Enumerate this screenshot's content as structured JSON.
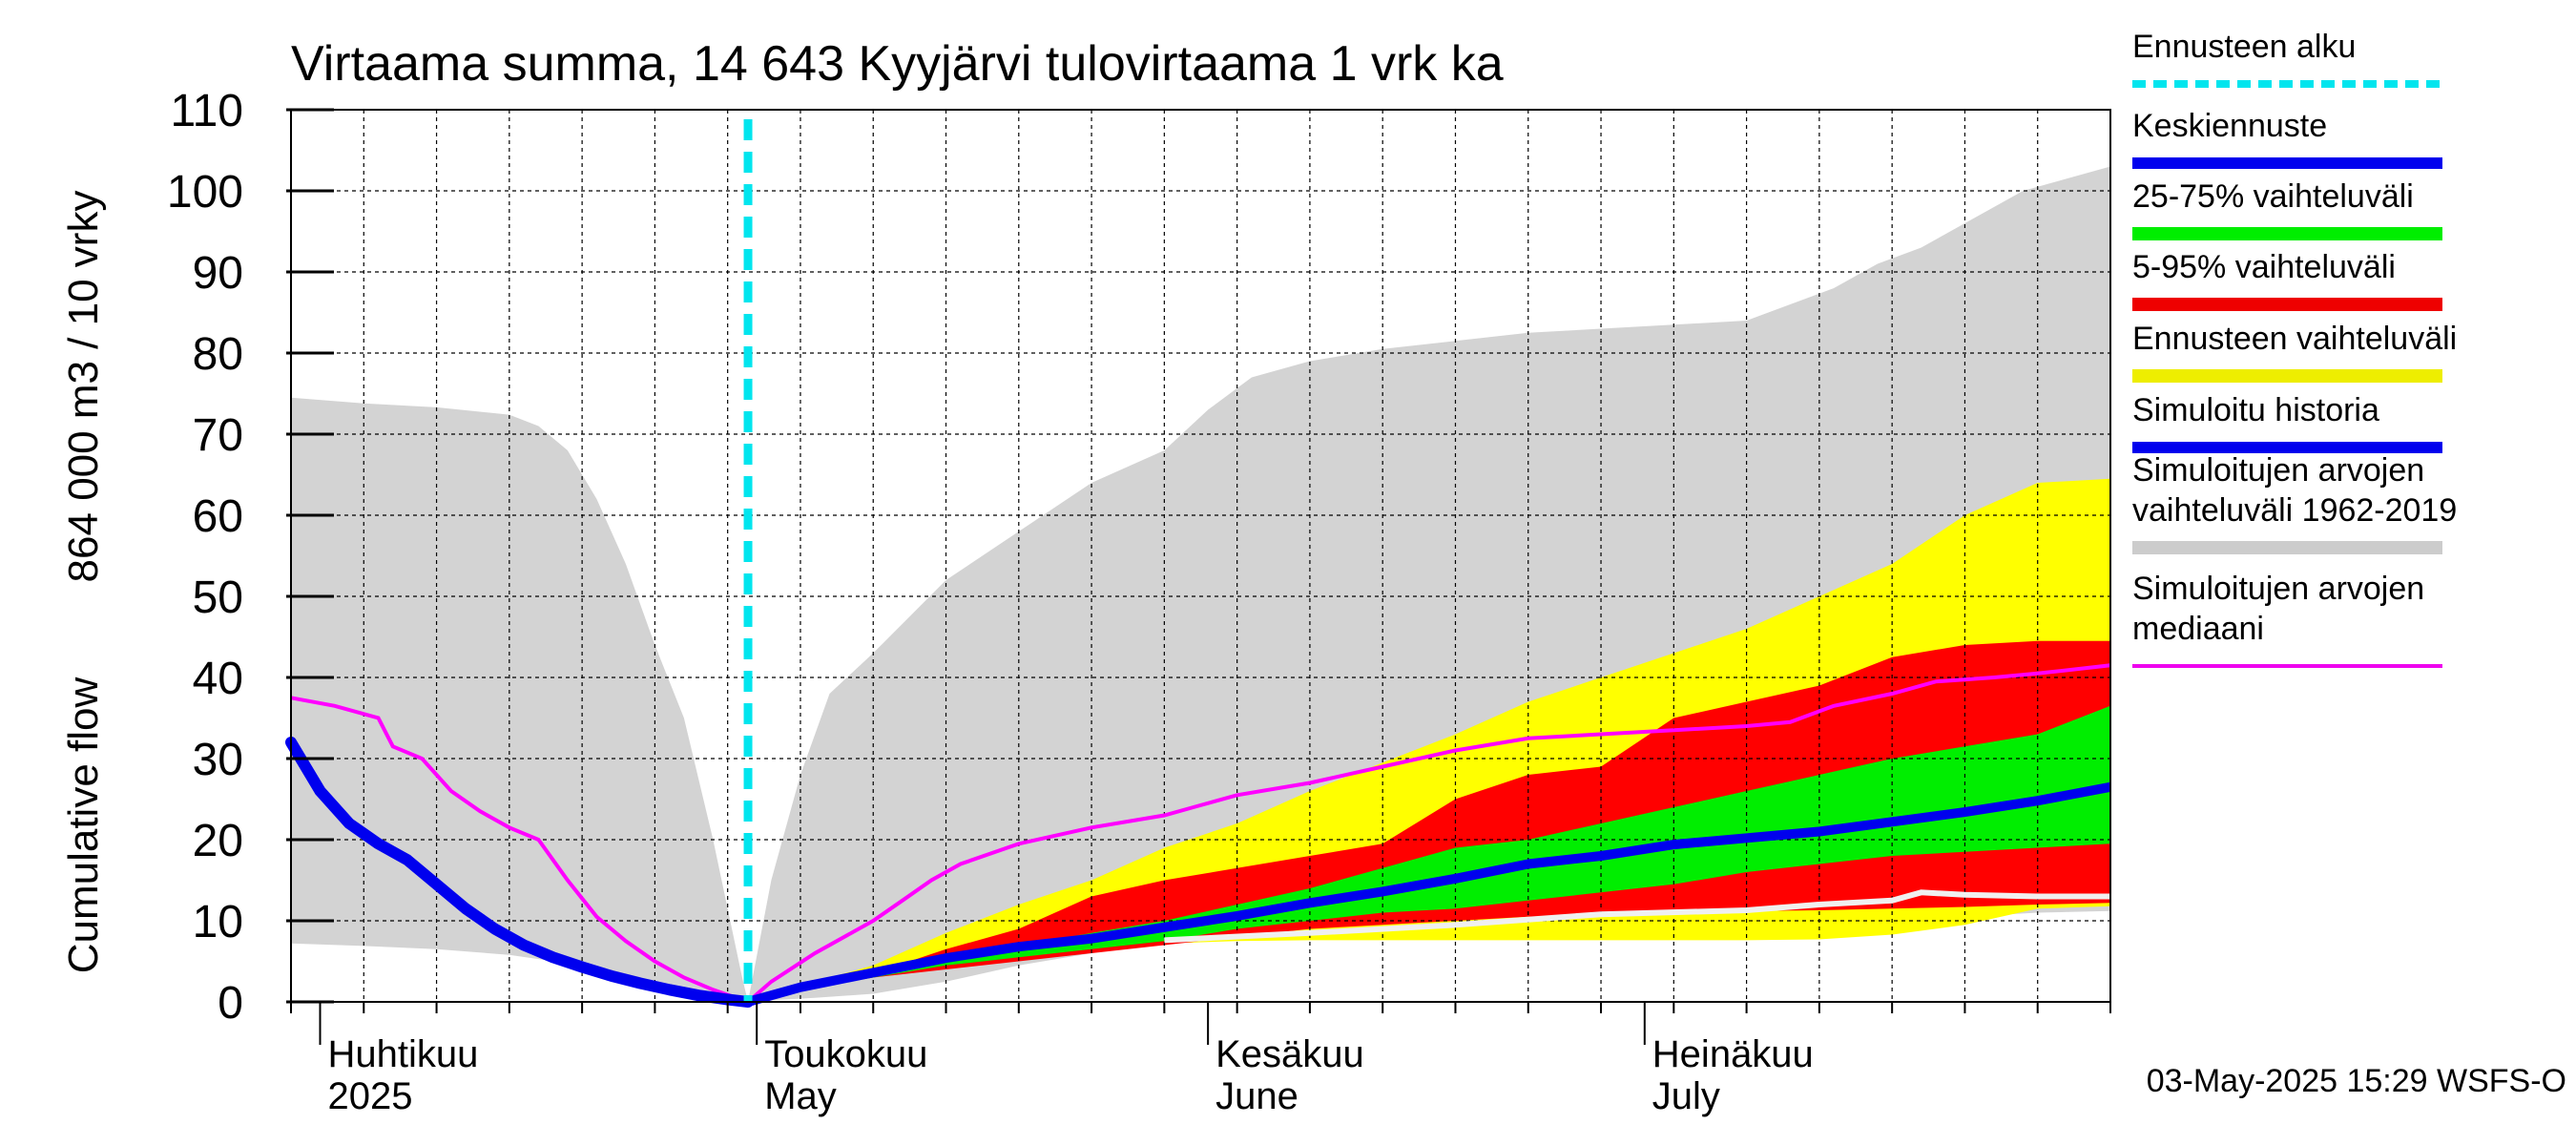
{
  "chart_data": {
    "type": "area",
    "title": "Virtaama summa, 14 643 Kyyjärvi tulovirtaama 1 vrk ka",
    "ylabel_lines": [
      "Cumulative flow",
      "864 000 m3 / 10 vrky"
    ],
    "ylim": [
      0,
      110
    ],
    "yticks": [
      0,
      10,
      20,
      30,
      40,
      50,
      60,
      70,
      80,
      90,
      100,
      110
    ],
    "x_range_days": [
      0,
      125
    ],
    "x_start_date": "2025-03-30",
    "month_labels": [
      {
        "day": 2,
        "line1": "Huhtikuu",
        "line2": "2025"
      },
      {
        "day": 32,
        "line1": "Toukokuu",
        "line2": "May"
      },
      {
        "day": 63,
        "line1": "Kesäkuu",
        "line2": "June"
      },
      {
        "day": 93,
        "line1": "Heinäkuu",
        "line2": "July"
      }
    ],
    "forecast_start_day": 31.4,
    "timestamp": "03-May-2025 15:29 WSFS-O",
    "legend": [
      {
        "label": "Ennusteen alku",
        "color": "#00e5ee",
        "style": "dashed"
      },
      {
        "label": "Keskiennuste",
        "color": "#0000ee",
        "style": "solid"
      },
      {
        "label": "25-75% vaihteluväli",
        "color": "#00ee00",
        "style": "solid"
      },
      {
        "label": "5-95% vaihteluväli",
        "color": "#ee0000",
        "style": "solid"
      },
      {
        "label": "Ennusteen vaihteluväli",
        "color": "#eeee00",
        "style": "solid"
      },
      {
        "label": "Simuloitu historia",
        "color": "#0000ee",
        "style": "solid"
      },
      {
        "label": "Simuloitujen arvojen\nvaihteluväli 1962-2019",
        "color": "#cccccc",
        "style": "solid"
      },
      {
        "label": "Simuloitujen arvojen\nmediaani",
        "color": "#ee00ee",
        "style": "solid"
      }
    ],
    "hist_band": {
      "upper": [
        [
          0,
          74.5
        ],
        [
          5,
          73.8
        ],
        [
          10,
          73.3
        ],
        [
          15,
          72.4
        ],
        [
          17,
          71
        ],
        [
          19,
          68
        ],
        [
          21,
          62
        ],
        [
          23,
          54
        ],
        [
          25,
          44
        ],
        [
          27,
          35
        ],
        [
          29,
          20
        ],
        [
          31,
          3
        ],
        [
          31.4,
          0
        ],
        [
          33,
          15
        ],
        [
          35,
          28
        ],
        [
          37,
          38
        ],
        [
          40,
          43
        ],
        [
          45,
          52
        ],
        [
          50,
          58
        ],
        [
          55,
          64
        ],
        [
          60,
          68
        ],
        [
          63,
          73
        ],
        [
          66,
          77
        ],
        [
          70,
          79
        ],
        [
          75,
          80.5
        ],
        [
          80,
          81.5
        ],
        [
          85,
          82.5
        ],
        [
          90,
          83
        ],
        [
          95,
          83.5
        ],
        [
          100,
          84
        ],
        [
          103,
          86
        ],
        [
          106,
          88
        ],
        [
          109,
          91
        ],
        [
          112,
          93
        ],
        [
          115,
          96
        ],
        [
          119,
          100
        ],
        [
          122,
          101.5
        ],
        [
          125,
          103
        ]
      ],
      "lower": [
        [
          0,
          7.2
        ],
        [
          5,
          6.9
        ],
        [
          10,
          6.5
        ],
        [
          15,
          5.8
        ],
        [
          20,
          4.5
        ],
        [
          25,
          2.5
        ],
        [
          30,
          0.5
        ],
        [
          31.4,
          0
        ],
        [
          33,
          0.2
        ],
        [
          36,
          0.5
        ],
        [
          40,
          1
        ],
        [
          45,
          2.5
        ],
        [
          50,
          4.5
        ],
        [
          55,
          6
        ],
        [
          60,
          7.5
        ],
        [
          65,
          7.8
        ],
        [
          70,
          7.9
        ],
        [
          80,
          7.9
        ],
        [
          90,
          7.9
        ],
        [
          100,
          7.9
        ],
        [
          105,
          8.5
        ],
        [
          110,
          9.5
        ],
        [
          115,
          10.5
        ],
        [
          120,
          11
        ],
        [
          125,
          11.2
        ]
      ]
    },
    "forecast_band": {
      "upper": [
        [
          31.4,
          0
        ],
        [
          35,
          2
        ],
        [
          40,
          4.5
        ],
        [
          45,
          8.5
        ],
        [
          50,
          12
        ],
        [
          55,
          15
        ],
        [
          60,
          19
        ],
        [
          65,
          22
        ],
        [
          70,
          26
        ],
        [
          75,
          29.5
        ],
        [
          80,
          33
        ],
        [
          85,
          37
        ],
        [
          90,
          40
        ],
        [
          95,
          43
        ],
        [
          100,
          46
        ],
        [
          105,
          50
        ],
        [
          110,
          54
        ],
        [
          115,
          60
        ],
        [
          120,
          64
        ],
        [
          125,
          64.5
        ]
      ],
      "lower": [
        [
          31.4,
          0
        ],
        [
          35,
          1.5
        ],
        [
          40,
          3
        ],
        [
          45,
          4.5
        ],
        [
          50,
          5.5
        ],
        [
          55,
          6.5
        ],
        [
          60,
          7.2
        ],
        [
          65,
          7.5
        ],
        [
          70,
          7.6
        ],
        [
          80,
          7.6
        ],
        [
          90,
          7.6
        ],
        [
          100,
          7.6
        ],
        [
          105,
          7.7
        ],
        [
          110,
          8.3
        ],
        [
          115,
          9.5
        ],
        [
          120,
          11.5
        ],
        [
          125,
          11.8
        ]
      ]
    },
    "p5_95_band": {
      "upper": [
        [
          31.4,
          0
        ],
        [
          35,
          2
        ],
        [
          40,
          3.5
        ],
        [
          45,
          6.5
        ],
        [
          50,
          9
        ],
        [
          55,
          13
        ],
        [
          60,
          15
        ],
        [
          65,
          16.5
        ],
        [
          70,
          18
        ],
        [
          75,
          19.5
        ],
        [
          80,
          25
        ],
        [
          85,
          28
        ],
        [
          90,
          29
        ],
        [
          95,
          35
        ],
        [
          100,
          37
        ],
        [
          105,
          39
        ],
        [
          110,
          42.5
        ],
        [
          115,
          44
        ],
        [
          120,
          44.5
        ],
        [
          125,
          44.5
        ]
      ],
      "lower": [
        [
          31.4,
          0
        ],
        [
          35,
          1.5
        ],
        [
          40,
          3
        ],
        [
          45,
          4
        ],
        [
          50,
          5
        ],
        [
          55,
          6
        ],
        [
          60,
          7
        ],
        [
          65,
          8
        ],
        [
          70,
          9
        ],
        [
          75,
          9.5
        ],
        [
          80,
          10
        ],
        [
          85,
          10.5
        ],
        [
          90,
          10.8
        ],
        [
          95,
          11
        ],
        [
          100,
          11.2
        ],
        [
          105,
          11.3
        ],
        [
          110,
          11.5
        ],
        [
          115,
          11.7
        ],
        [
          120,
          12
        ],
        [
          125,
          12.2
        ]
      ]
    },
    "p25_75_band": {
      "upper": [
        [
          31.4,
          0
        ],
        [
          35,
          1.6
        ],
        [
          40,
          3.5
        ],
        [
          45,
          5.2
        ],
        [
          50,
          7
        ],
        [
          55,
          8.5
        ],
        [
          60,
          10
        ],
        [
          65,
          12
        ],
        [
          70,
          14
        ],
        [
          75,
          16.5
        ],
        [
          80,
          19
        ],
        [
          85,
          20
        ],
        [
          90,
          22
        ],
        [
          95,
          24
        ],
        [
          100,
          26
        ],
        [
          105,
          28
        ],
        [
          110,
          30
        ],
        [
          115,
          31.5
        ],
        [
          120,
          33
        ],
        [
          125,
          36.5
        ]
      ],
      "lower": [
        [
          31.4,
          0
        ],
        [
          35,
          1.6
        ],
        [
          40,
          3
        ],
        [
          45,
          4.5
        ],
        [
          50,
          5.5
        ],
        [
          55,
          6.5
        ],
        [
          60,
          7.5
        ],
        [
          65,
          9
        ],
        [
          70,
          10
        ],
        [
          75,
          11
        ],
        [
          80,
          11.5
        ],
        [
          85,
          12.5
        ],
        [
          90,
          13.5
        ],
        [
          95,
          14.5
        ],
        [
          100,
          16
        ],
        [
          105,
          17
        ],
        [
          110,
          18
        ],
        [
          115,
          18.5
        ],
        [
          120,
          19
        ],
        [
          125,
          19.5
        ]
      ]
    },
    "median_forecast": [
      [
        31.4,
        0
      ],
      [
        35,
        1.8
      ],
      [
        40,
        3.6
      ],
      [
        45,
        5.4
      ],
      [
        50,
        6.8
      ],
      [
        55,
        7.8
      ],
      [
        60,
        9.2
      ],
      [
        65,
        10.6
      ],
      [
        70,
        12.2
      ],
      [
        75,
        13.6
      ],
      [
        80,
        15.2
      ],
      [
        85,
        17
      ],
      [
        90,
        18
      ],
      [
        95,
        19.4
      ],
      [
        100,
        20.2
      ],
      [
        105,
        21
      ],
      [
        110,
        22.2
      ],
      [
        115,
        23.4
      ],
      [
        120,
        24.8
      ],
      [
        125,
        26.5
      ]
    ],
    "simulated_history": [
      [
        0,
        32
      ],
      [
        2,
        26
      ],
      [
        4,
        22
      ],
      [
        6,
        19.5
      ],
      [
        8,
        17.5
      ],
      [
        10,
        14.5
      ],
      [
        12,
        11.5
      ],
      [
        14,
        9
      ],
      [
        16,
        7
      ],
      [
        18,
        5.5
      ],
      [
        20,
        4.3
      ],
      [
        22,
        3.2
      ],
      [
        24,
        2.3
      ],
      [
        26,
        1.5
      ],
      [
        28,
        0.8
      ],
      [
        30,
        0.3
      ],
      [
        31.4,
        0
      ]
    ],
    "historical_median": [
      [
        0,
        37.5
      ],
      [
        3,
        36.5
      ],
      [
        6,
        35
      ],
      [
        7,
        31.5
      ],
      [
        9,
        30
      ],
      [
        11,
        26
      ],
      [
        13,
        23.5
      ],
      [
        15,
        21.5
      ],
      [
        17,
        20
      ],
      [
        19,
        15
      ],
      [
        21,
        10.5
      ],
      [
        23,
        7.5
      ],
      [
        25,
        5
      ],
      [
        27,
        3
      ],
      [
        29,
        1.5
      ],
      [
        31.4,
        0
      ],
      [
        33,
        2.5
      ],
      [
        36,
        6
      ],
      [
        40,
        10
      ],
      [
        42,
        12.5
      ],
      [
        44,
        15
      ],
      [
        46,
        17
      ],
      [
        50,
        19.5
      ],
      [
        55,
        21.5
      ],
      [
        60,
        23
      ],
      [
        62,
        24
      ],
      [
        65,
        25.5
      ],
      [
        70,
        27
      ],
      [
        75,
        29
      ],
      [
        80,
        31
      ],
      [
        85,
        32.5
      ],
      [
        90,
        33
      ],
      [
        95,
        33.5
      ],
      [
        100,
        34
      ],
      [
        103,
        34.5
      ],
      [
        106,
        36.5
      ],
      [
        110,
        38
      ],
      [
        113,
        39.5
      ],
      [
        117,
        40
      ],
      [
        120,
        40.5
      ],
      [
        125,
        41.5
      ]
    ],
    "lower_white_line": [
      [
        60,
        7.6
      ],
      [
        70,
        8.5
      ],
      [
        80,
        9.5
      ],
      [
        90,
        10.8
      ],
      [
        100,
        11.3
      ],
      [
        105,
        12
      ],
      [
        110,
        12.5
      ],
      [
        112,
        13.5
      ],
      [
        115,
        13.2
      ],
      [
        120,
        13
      ],
      [
        125,
        13
      ]
    ]
  }
}
